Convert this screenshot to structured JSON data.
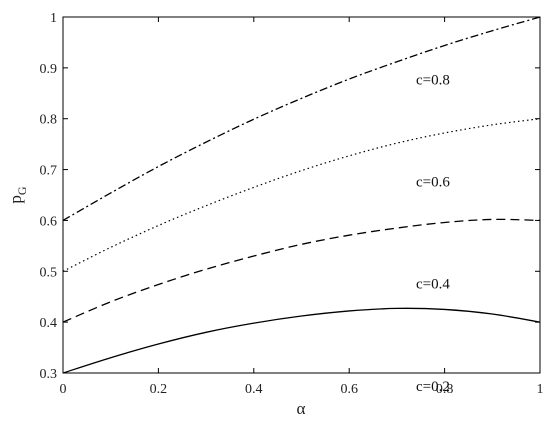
{
  "chart_data": {
    "type": "line",
    "xlabel": "α",
    "ylabel_main": "p",
    "ylabel_sub": "G",
    "xlim": [
      0,
      1
    ],
    "ylim": [
      0.3,
      1
    ],
    "xticks": [
      0,
      0.2,
      0.4,
      0.6,
      0.8,
      1
    ],
    "xtick_labels": [
      "0",
      "0.2",
      "0.4",
      "0.6",
      "0.8",
      "1"
    ],
    "yticks": [
      0.3,
      0.4,
      0.5,
      0.6,
      0.7,
      0.8,
      0.9,
      1
    ],
    "ytick_labels": [
      "0.3",
      "0.4",
      "0.5",
      "0.6",
      "0.7",
      "0.8",
      "0.9",
      "1"
    ],
    "grid": false,
    "legend": "none",
    "x": [
      0,
      0.1,
      0.2,
      0.3,
      0.4,
      0.5,
      0.6,
      0.7,
      0.8,
      0.9,
      1.0
    ],
    "series": [
      {
        "label": "c=0.8",
        "style": "dashdot",
        "label_pos": [
          0.74,
          0.867
        ],
        "values": [
          0.6,
          0.654,
          0.706,
          0.754,
          0.799,
          0.84,
          0.878,
          0.912,
          0.944,
          0.973,
          1.0
        ]
      },
      {
        "label": "c=0.6",
        "style": "dotted",
        "label_pos": [
          0.74,
          0.667
        ],
        "values": [
          0.5,
          0.547,
          0.59,
          0.629,
          0.665,
          0.698,
          0.727,
          0.752,
          0.772,
          0.788,
          0.8
        ]
      },
      {
        "label": "c=0.4",
        "style": "dashed",
        "label_pos": [
          0.74,
          0.466
        ],
        "values": [
          0.4,
          0.44,
          0.474,
          0.504,
          0.53,
          0.553,
          0.571,
          0.585,
          0.596,
          0.602,
          0.6
        ]
      },
      {
        "label": "c=0.2",
        "style": "solid",
        "label_pos": [
          0.74,
          0.265
        ],
        "values": [
          0.3,
          0.33,
          0.357,
          0.38,
          0.398,
          0.412,
          0.422,
          0.427,
          0.425,
          0.416,
          0.4
        ]
      }
    ]
  }
}
